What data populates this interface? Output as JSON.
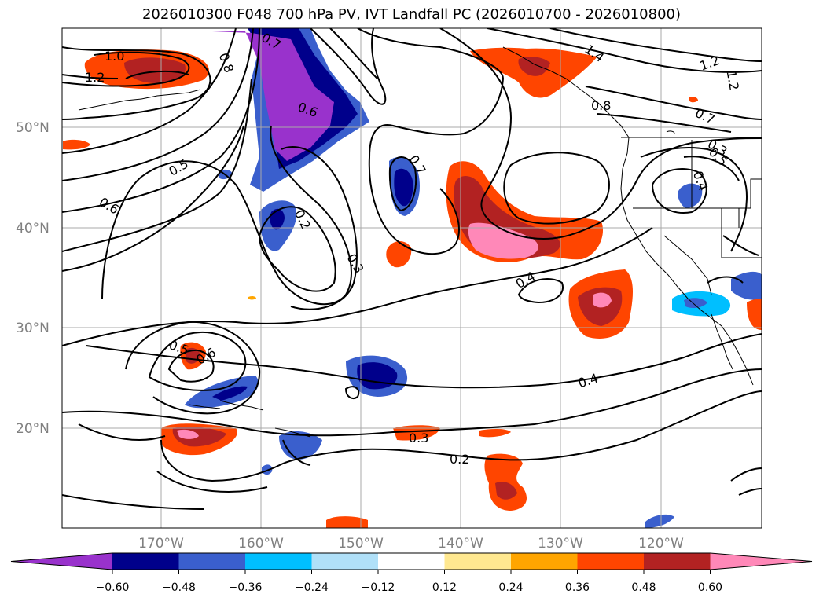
{
  "title": "2026010300 F048 700 hPa PV, IVT Landfall PC (2026010700 - 2026010800)",
  "lat_labels": [
    "50°N",
    "40°N",
    "30°N",
    "20°N"
  ],
  "lon_labels": [
    "170°W",
    "160°W",
    "150°W",
    "140°W",
    "130°W",
    "120°W"
  ],
  "contour_labels": [
    "1.0",
    "1.2",
    "0.8",
    "0.7",
    "0.6",
    "0.5",
    "0.6",
    "0.2",
    "0.3",
    "0.7",
    "0.4",
    "0.5",
    "0.6",
    "0.4",
    "0.3",
    "0.2",
    "1.2",
    "1.2",
    "1.4",
    "0.8",
    "0.7",
    "0.5",
    "0.4",
    "0.3"
  ],
  "colorbar": {
    "ticks": [
      "−0.60",
      "−0.48",
      "−0.36",
      "−0.24",
      "−0.12",
      "0.12",
      "0.24",
      "0.36",
      "0.48",
      "0.60"
    ],
    "colors": [
      "#9932cc",
      "#00008b",
      "#3a5fcd",
      "#00bfff",
      "#b0e0f8",
      "#ffffff",
      "#ffe890",
      "#ffa500",
      "#ff4500",
      "#b22222",
      "#ff88b8"
    ]
  }
}
